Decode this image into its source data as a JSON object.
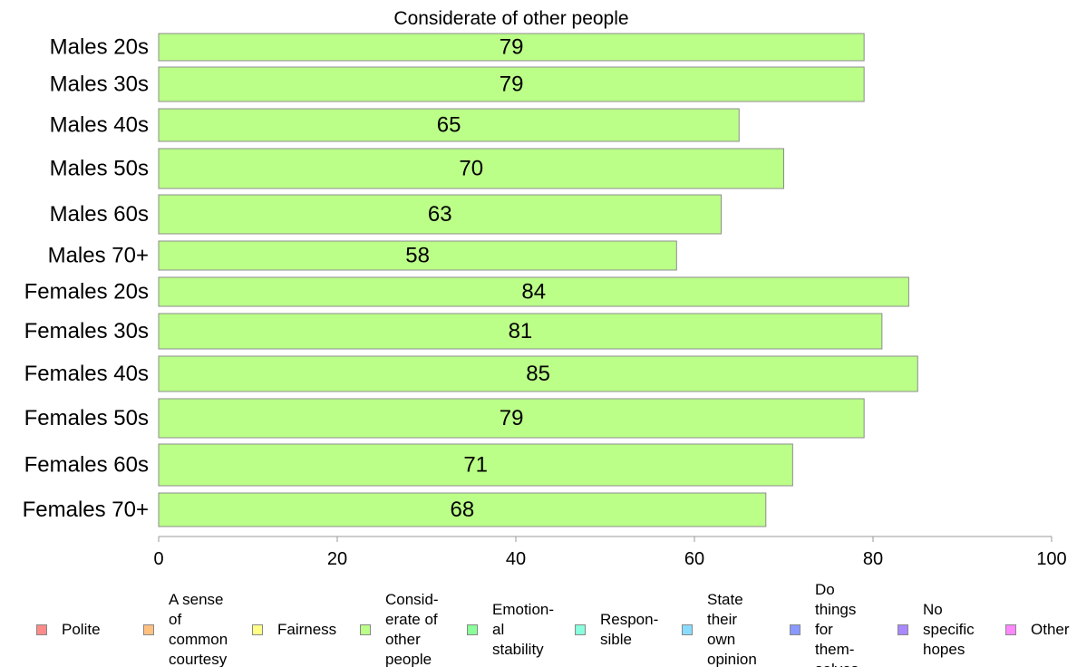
{
  "chart_data": {
    "type": "bar",
    "orientation": "horizontal",
    "title": "Considerate of other people",
    "categories": [
      "Males 20s",
      "Males 30s",
      "Males 40s",
      "Males 50s",
      "Males 60s",
      "Males 70+",
      "Females 20s",
      "Females 30s",
      "Females 40s",
      "Females 50s",
      "Females 60s",
      "Females 70+"
    ],
    "values": [
      79,
      79,
      65,
      70,
      63,
      58,
      84,
      81,
      85,
      79,
      71,
      68
    ],
    "data_labels": [
      "79",
      "79",
      "65",
      "70",
      "63",
      "58",
      "84",
      "81",
      "85",
      "79",
      "71",
      "68"
    ],
    "xlim": [
      0,
      100
    ],
    "xticks": [
      0,
      20,
      40,
      60,
      80,
      100
    ],
    "xtick_labels": [
      "0",
      "20",
      "40",
      "60",
      "80",
      "100"
    ],
    "grid": false,
    "bar_color": "#bbff88",
    "legend_position": "bottom",
    "legend": [
      {
        "lines": [
          "Polite"
        ],
        "color": "#ff8a8a"
      },
      {
        "lines": [
          "A sense",
          "of",
          "common",
          "courtesy"
        ],
        "color": "#ffc080"
      },
      {
        "lines": [
          "Fairness"
        ],
        "color": "#ffff88"
      },
      {
        "lines": [
          "Consid-",
          "erate of",
          "other",
          "people"
        ],
        "color": "#bbff88"
      },
      {
        "lines": [
          "Emotion-",
          "al",
          "stability"
        ],
        "color": "#88ff99"
      },
      {
        "lines": [
          "Respon-",
          "sible"
        ],
        "color": "#88ffdd"
      },
      {
        "lines": [
          "State",
          "their",
          "own",
          "opinion"
        ],
        "color": "#88ddff"
      },
      {
        "lines": [
          "Do",
          "things",
          "for",
          "them-",
          "selves"
        ],
        "color": "#8899ff"
      },
      {
        "lines": [
          "No",
          "specific",
          "hopes"
        ],
        "color": "#aa88ff"
      },
      {
        "lines": [
          "Other"
        ],
        "color": "#ff88ff"
      }
    ]
  }
}
